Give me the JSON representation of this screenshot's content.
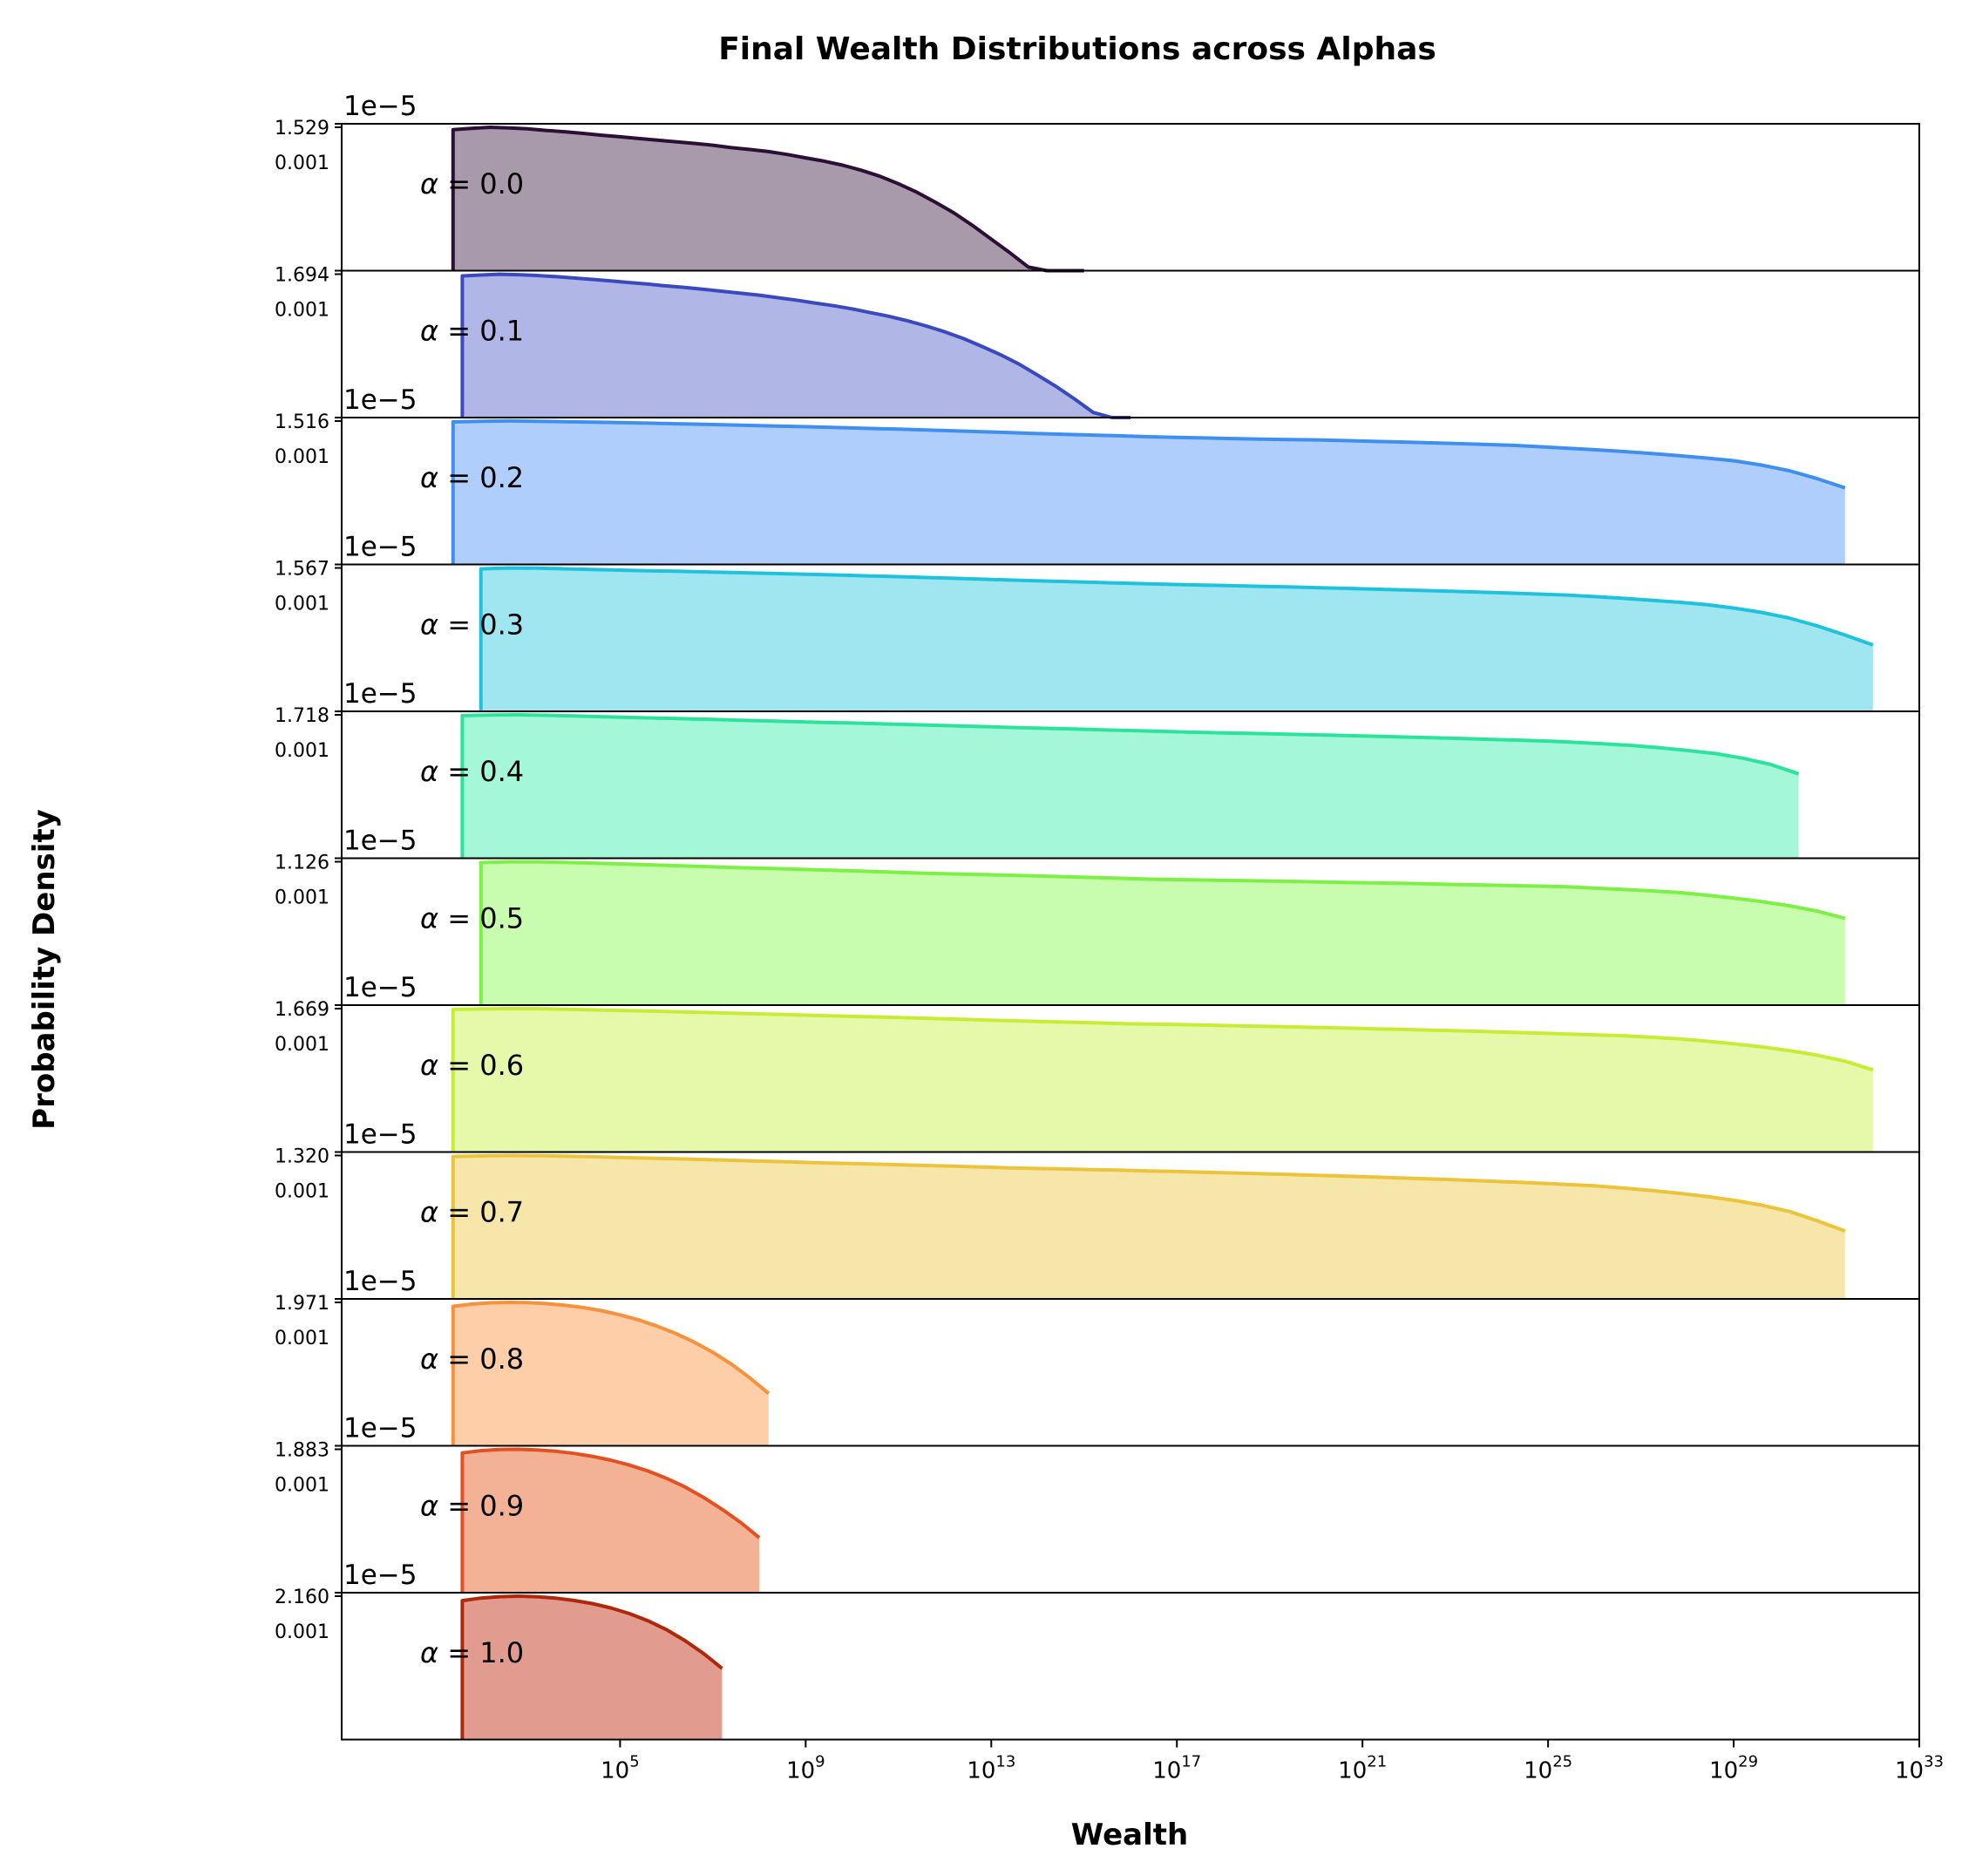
{
  "chart_data": {
    "type": "area",
    "title": "Final Wealth Distributions across Alphas",
    "xlabel": "Wealth",
    "ylabel": "Probability Density",
    "x_scale": "log",
    "xlim": [
      0.1,
      1e+33
    ],
    "xticks": [
      {
        "value": 100000.0,
        "base": "10",
        "exp": "5"
      },
      {
        "value": 1000000000.0,
        "base": "10",
        "exp": "9"
      },
      {
        "value": 10000000000000.0,
        "base": "10",
        "exp": "13"
      },
      {
        "value": 1e+17,
        "base": "10",
        "exp": "17"
      },
      {
        "value": 1e+21,
        "base": "10",
        "exp": "21"
      },
      {
        "value": 1e+25,
        "base": "10",
        "exp": "25"
      },
      {
        "value": 1e+29,
        "base": "10",
        "exp": "29"
      },
      {
        "value": 1e+33,
        "base": "10",
        "exp": "33"
      }
    ],
    "series": [
      {
        "name": "α = 0.0",
        "label_greek": "α",
        "label_rest": " = 0.0",
        "color": "#2b0f36",
        "fill": "#9a889c",
        "ytick_top": "1.529",
        "ytick_mid": "0.001",
        "ymid": 0.001,
        "ymax": 1.529e-05,
        "offset": "1e−5",
        "ymin": 1e-08,
        "x_log10": [
          1.4,
          1.8,
          2.2,
          2.6,
          3.0,
          3.4,
          3.8,
          4.2,
          4.6,
          5.0,
          5.4,
          5.8,
          6.2,
          6.6,
          7.0,
          7.4,
          7.8,
          8.2,
          8.6,
          9.0,
          9.4,
          9.8,
          10.2,
          10.6,
          11.0,
          11.4,
          11.8,
          12.2,
          12.6,
          13.0,
          13.4,
          13.8,
          14.2,
          14.6,
          15.0
        ],
        "y": [
          1.35e-05,
          1.45e-05,
          1.53e-05,
          1.48e-05,
          1.42e-05,
          1.3e-05,
          1.22e-05,
          1.12e-05,
          1.02e-05,
          9.4e-06,
          8.6e-06,
          7.9e-06,
          7.3e-06,
          6.7e-06,
          6.1e-06,
          5.4e-06,
          4.9e-06,
          4.4e-06,
          3.8e-06,
          3.2e-06,
          2.7e-06,
          2.2e-06,
          1.7e-06,
          1.25e-06,
          8.5e-07,
          5.5e-07,
          3.3e-07,
          1.9e-07,
          1e-07,
          5e-08,
          2.5e-08,
          1.2e-08,
          6e-09,
          3e-09,
          1.5e-09
        ]
      },
      {
        "name": "α = 0.1",
        "label_greek": "α",
        "label_rest": " = 0.1",
        "color": "#3a49c0",
        "fill": "#a2a9e0",
        "ytick_top": "1.694",
        "ytick_mid": "0.001",
        "ymid": 0.001,
        "ymax": 1.694e-05,
        "offset": "1e−5",
        "ymin": 1e-08,
        "x_log10": [
          1.6,
          2.0,
          2.4,
          2.8,
          3.2,
          3.6,
          4.0,
          4.4,
          4.8,
          5.2,
          5.6,
          6.0,
          6.4,
          6.8,
          7.2,
          7.6,
          8.0,
          8.4,
          8.8,
          9.2,
          9.6,
          10.0,
          10.4,
          10.8,
          11.2,
          11.6,
          12.0,
          12.4,
          12.8,
          13.2,
          13.6,
          14.0,
          14.4,
          14.8,
          15.2,
          15.6,
          16.0
        ],
        "y": [
          1.55e-05,
          1.62e-05,
          1.69e-05,
          1.65e-05,
          1.58e-05,
          1.49e-05,
          1.39e-05,
          1.29e-05,
          1.19e-05,
          1.1e-05,
          1.01e-05,
          9.2e-06,
          8.5e-06,
          7.7e-06,
          7e-06,
          6.3e-06,
          5.7e-06,
          5e-06,
          4.4e-06,
          3.8e-06,
          3.3e-06,
          2.8e-06,
          2.3e-06,
          1.9e-06,
          1.5e-06,
          1.15e-06,
          8.5e-07,
          6e-07,
          4e-07,
          2.6e-07,
          1.6e-07,
          9e-08,
          5e-08,
          2.6e-08,
          1.3e-08,
          6e-09,
          3e-09
        ]
      },
      {
        "name": "α = 0.2",
        "label_greek": "α",
        "label_rest": " = 0.2",
        "color": "#3f8ff0",
        "fill": "#a2c5fb",
        "ytick_top": "1.516",
        "ytick_mid": "0.001",
        "ymid": 0.001,
        "ymax": 1.516e-05,
        "offset": "1e−5",
        "ymin": 1e-08,
        "x_log10": [
          1.4,
          2.0,
          2.6,
          3.2,
          3.8,
          4.4,
          5.0,
          5.6,
          6.2,
          6.8,
          7.4,
          8.0,
          8.6,
          9.2,
          9.8,
          10.4,
          11.0,
          11.6,
          12.2,
          12.8,
          13.4,
          14.0,
          14.6,
          15.2,
          15.8,
          16.4,
          17.0,
          17.6,
          18.2,
          18.8,
          19.4,
          20.0,
          20.6,
          21.2,
          21.8,
          22.4,
          23.0,
          23.6,
          24.2,
          24.8,
          25.4,
          26.0,
          26.6,
          27.2,
          27.8,
          28.4,
          29.0,
          29.6,
          30.2,
          30.8,
          31.4
        ],
        "y": [
          1.45e-05,
          1.5e-05,
          1.52e-05,
          1.5e-05,
          1.47e-05,
          1.44e-05,
          1.4e-05,
          1.36e-05,
          1.32e-05,
          1.28e-05,
          1.24e-05,
          1.2e-05,
          1.16e-05,
          1.12e-05,
          1.08e-05,
          1.04e-05,
          1e-05,
          9.6e-06,
          9.2e-06,
          8.8e-06,
          8.4e-06,
          8e-06,
          7.7e-06,
          7.4e-06,
          7.1e-06,
          6.8e-06,
          6.6e-06,
          6.4e-06,
          6.2e-06,
          6e-06,
          5.9e-06,
          5.8e-06,
          5.6e-06,
          5.4e-06,
          5.2e-06,
          5e-06,
          4.8e-06,
          4.6e-06,
          4.4e-06,
          4.1e-06,
          3.8e-06,
          3.5e-06,
          3.2e-06,
          2.9e-06,
          2.6e-06,
          2.3e-06,
          2e-06,
          1.6e-06,
          1.2e-06,
          8e-07,
          5e-07
        ]
      },
      {
        "name": "α = 0.3",
        "label_greek": "α",
        "label_rest": " = 0.3",
        "color": "#1fc2dd",
        "fill": "#8fe2ef",
        "ytick_top": "1.567",
        "ytick_mid": "0.001",
        "ymid": 0.001,
        "ymax": 1.567e-05,
        "offset": "1e−5",
        "ymin": 1e-08,
        "x_log10": [
          2.0,
          2.6,
          3.2,
          3.8,
          4.4,
          5.0,
          5.6,
          6.2,
          6.8,
          7.4,
          8.0,
          8.6,
          9.2,
          9.8,
          10.4,
          11.0,
          11.6,
          12.2,
          12.8,
          13.4,
          14.0,
          14.6,
          15.2,
          15.8,
          16.4,
          17.0,
          17.6,
          18.2,
          18.8,
          19.4,
          20.0,
          20.6,
          21.2,
          21.8,
          22.4,
          23.0,
          23.6,
          24.2,
          24.8,
          25.4,
          26.0,
          26.6,
          27.2,
          27.8,
          28.4,
          29.0,
          29.6,
          30.2,
          30.8,
          31.4,
          32.0
        ],
        "y": [
          1.5e-05,
          1.56e-05,
          1.55e-05,
          1.5e-05,
          1.45e-05,
          1.4e-05,
          1.36e-05,
          1.32e-05,
          1.28e-05,
          1.24e-05,
          1.2e-05,
          1.16e-05,
          1.12e-05,
          1.08e-05,
          1.04e-05,
          1e-05,
          9.6e-06,
          9.2e-06,
          8.8e-06,
          8.4e-06,
          8.1e-06,
          7.8e-06,
          7.5e-06,
          7.2e-06,
          6.9e-06,
          6.7e-06,
          6.5e-06,
          6.3e-06,
          6.1e-06,
          5.9e-06,
          5.7e-06,
          5.5e-06,
          5.3e-06,
          5.1e-06,
          4.9e-06,
          4.7e-06,
          4.5e-06,
          4.3e-06,
          4.1e-06,
          3.9e-06,
          3.6e-06,
          3.3e-06,
          3e-06,
          2.7e-06,
          2.4e-06,
          2e-06,
          1.6e-06,
          1.2e-06,
          8e-07,
          5e-07,
          3e-07
        ]
      },
      {
        "name": "α = 0.4",
        "label_greek": "α",
        "label_rest": " = 0.4",
        "color": "#2be39b",
        "fill": "#95f6d2",
        "ytick_top": "1.718",
        "ytick_mid": "0.001",
        "ymid": 0.001,
        "ymax": 1.718e-05,
        "offset": "1e−5",
        "ymin": 1e-08,
        "x_log10": [
          1.6,
          2.2,
          2.8,
          3.4,
          4.0,
          4.6,
          5.2,
          5.8,
          6.4,
          7.0,
          7.6,
          8.2,
          8.8,
          9.4,
          10.0,
          10.6,
          11.2,
          11.8,
          12.4,
          13.0,
          13.6,
          14.2,
          14.8,
          15.4,
          16.0,
          16.6,
          17.2,
          17.8,
          18.4,
          19.0,
          19.6,
          20.2,
          20.8,
          21.4,
          22.0,
          22.6,
          23.2,
          23.8,
          24.4,
          25.0,
          25.6,
          26.2,
          26.8,
          27.4,
          28.0,
          28.6,
          29.2,
          29.8,
          30.4
        ],
        "y": [
          1.65e-05,
          1.7e-05,
          1.72e-05,
          1.68e-05,
          1.62e-05,
          1.56e-05,
          1.5e-05,
          1.45e-05,
          1.4e-05,
          1.35e-05,
          1.3e-05,
          1.25e-05,
          1.2e-05,
          1.16e-05,
          1.12e-05,
          1.08e-05,
          1.04e-05,
          1e-05,
          9.6e-06,
          9.2e-06,
          8.8e-06,
          8.5e-06,
          8.2e-06,
          7.9e-06,
          7.6e-06,
          7.3e-06,
          7e-06,
          6.8e-06,
          6.6e-06,
          6.4e-06,
          6.2e-06,
          6e-06,
          5.8e-06,
          5.6e-06,
          5.4e-06,
          5.2e-06,
          5e-06,
          4.8e-06,
          4.6e-06,
          4.4e-06,
          4.1e-06,
          3.8e-06,
          3.5e-06,
          3.1e-06,
          2.7e-06,
          2.3e-06,
          1.8e-06,
          1.3e-06,
          8e-07
        ]
      },
      {
        "name": "α = 0.5",
        "label_greek": "α",
        "label_rest": " = 0.5",
        "color": "#7cf045",
        "fill": "#befba0",
        "ytick_top": "1.126",
        "ytick_mid": "0.001",
        "ymid": 0.001,
        "ymax": 1.126e-05,
        "offset": "1e−5",
        "ymin": 1e-08,
        "x_log10": [
          2.0,
          2.6,
          3.2,
          3.8,
          4.4,
          5.0,
          5.6,
          6.2,
          6.8,
          7.4,
          8.0,
          8.6,
          9.2,
          9.8,
          10.4,
          11.0,
          11.6,
          12.2,
          12.8,
          13.4,
          14.0,
          14.6,
          15.2,
          15.8,
          16.4,
          17.0,
          17.6,
          18.2,
          18.8,
          19.4,
          20.0,
          20.6,
          21.2,
          21.8,
          22.4,
          23.0,
          23.6,
          24.2,
          24.8,
          25.4,
          26.0,
          26.6,
          27.2,
          27.8,
          28.4,
          29.0,
          29.6,
          30.2,
          30.8,
          31.4
        ],
        "y": [
          1.08e-05,
          1.12e-05,
          1.12e-05,
          1.09e-05,
          1.05e-05,
          1.01e-05,
          9.7e-06,
          9.3e-06,
          8.9e-06,
          8.5e-06,
          8.2e-06,
          7.9e-06,
          7.6e-06,
          7.3e-06,
          7e-06,
          6.7e-06,
          6.4e-06,
          6.2e-06,
          6e-06,
          5.8e-06,
          5.6e-06,
          5.4e-06,
          5.2e-06,
          5e-06,
          4.8e-06,
          4.7e-06,
          4.6e-06,
          4.5e-06,
          4.4e-06,
          4.3e-06,
          4.2e-06,
          4.1e-06,
          4e-06,
          3.9e-06,
          3.8e-06,
          3.7e-06,
          3.6e-06,
          3.5e-06,
          3.4e-06,
          3.3e-06,
          3.1e-06,
          2.9e-06,
          2.7e-06,
          2.5e-06,
          2.2e-06,
          1.9e-06,
          1.6e-06,
          1.3e-06,
          1e-06,
          7e-07
        ]
      },
      {
        "name": "α = 0.6",
        "label_greek": "α",
        "label_rest": " = 0.6",
        "color": "#c6ed34",
        "fill": "#e2f89c",
        "ytick_top": "1.669",
        "ytick_mid": "0.001",
        "ymid": 0.001,
        "ymax": 1.669e-05,
        "offset": "1e−5",
        "ymin": 1e-08,
        "x_log10": [
          1.4,
          2.0,
          2.6,
          3.2,
          3.8,
          4.4,
          5.0,
          5.6,
          6.2,
          6.8,
          7.4,
          8.0,
          8.6,
          9.2,
          9.8,
          10.4,
          11.0,
          11.6,
          12.2,
          12.8,
          13.4,
          14.0,
          14.6,
          15.2,
          15.8,
          16.4,
          17.0,
          17.6,
          18.2,
          18.8,
          19.4,
          20.0,
          20.6,
          21.2,
          21.8,
          22.4,
          23.0,
          23.6,
          24.2,
          24.8,
          25.4,
          26.0,
          26.6,
          27.2,
          27.8,
          28.4,
          29.0,
          29.6,
          30.2,
          30.8,
          31.4,
          32.0
        ],
        "y": [
          1.6e-05,
          1.64e-05,
          1.67e-05,
          1.66e-05,
          1.62e-05,
          1.57e-05,
          1.52e-05,
          1.47e-05,
          1.42e-05,
          1.37e-05,
          1.32e-05,
          1.27e-05,
          1.22e-05,
          1.17e-05,
          1.13e-05,
          1.09e-05,
          1.05e-05,
          1.01e-05,
          9.7e-06,
          9.3e-06,
          8.9e-06,
          8.6e-06,
          8.3e-06,
          8e-06,
          7.7e-06,
          7.5e-06,
          7.3e-06,
          7.1e-06,
          6.9e-06,
          6.7e-06,
          6.5e-06,
          6.3e-06,
          6.1e-06,
          5.9e-06,
          5.7e-06,
          5.5e-06,
          5.3e-06,
          5.1e-06,
          4.9e-06,
          4.7e-06,
          4.5e-06,
          4.3e-06,
          4.1e-06,
          3.8e-06,
          3.5e-06,
          3.1e-06,
          2.7e-06,
          2.3e-06,
          1.9e-06,
          1.5e-06,
          1.1e-06,
          7e-07
        ]
      },
      {
        "name": "α = 0.7",
        "label_greek": "α",
        "label_rest": " = 0.7",
        "color": "#ecc33b",
        "fill": "#f4e29b",
        "ytick_top": "1.320",
        "ytick_mid": "0.001",
        "ymid": 0.001,
        "ymax": 1.32e-05,
        "offset": "1e−5",
        "ymin": 1e-08,
        "x_log10": [
          1.4,
          2.0,
          2.6,
          3.2,
          3.8,
          4.4,
          5.0,
          5.6,
          6.2,
          6.8,
          7.4,
          8.0,
          8.6,
          9.2,
          9.8,
          10.4,
          11.0,
          11.6,
          12.2,
          12.8,
          13.4,
          14.0,
          14.6,
          15.2,
          15.8,
          16.4,
          17.0,
          17.6,
          18.2,
          18.8,
          19.4,
          20.0,
          20.6,
          21.2,
          21.8,
          22.4,
          23.0,
          23.6,
          24.2,
          24.8,
          25.4,
          26.0,
          26.6,
          27.2,
          27.8,
          28.4,
          29.0,
          29.6,
          30.2,
          30.8,
          31.4
        ],
        "y": [
          1.26e-05,
          1.29e-05,
          1.32e-05,
          1.31e-05,
          1.28e-05,
          1.24e-05,
          1.2e-05,
          1.16e-05,
          1.12e-05,
          1.08e-05,
          1.04e-05,
          1e-05,
          9.6e-06,
          9.2e-06,
          8.9e-06,
          8.6e-06,
          8.3e-06,
          8e-06,
          7.7e-06,
          7.4e-06,
          7.1e-06,
          6.9e-06,
          6.7e-06,
          6.5e-06,
          6.3e-06,
          6.1e-06,
          5.9e-06,
          5.7e-06,
          5.5e-06,
          5.3e-06,
          5.1e-06,
          4.9e-06,
          4.7e-06,
          4.5e-06,
          4.3e-06,
          4.1e-06,
          3.9e-06,
          3.7e-06,
          3.5e-06,
          3.3e-06,
          3.1e-06,
          2.9e-06,
          2.6e-06,
          2.3e-06,
          2e-06,
          1.7e-06,
          1.4e-06,
          1.1e-06,
          8e-07,
          5e-07,
          3e-07
        ]
      },
      {
        "name": "α = 0.8",
        "label_greek": "α",
        "label_rest": " = 0.8",
        "color": "#f7913b",
        "fill": "#fdc699",
        "ytick_top": "1.971",
        "ytick_mid": "0.001",
        "ymid": 0.001,
        "ymax": 1.971e-05,
        "offset": "1e−5",
        "ymin": 1e-08,
        "x_log10": [
          1.4,
          1.8,
          2.2,
          2.6,
          3.0,
          3.4,
          3.8,
          4.2,
          4.6,
          5.0,
          5.4,
          5.8,
          6.2,
          6.6,
          7.0,
          7.4,
          7.8,
          8.2
        ],
        "y": [
          1.6e-05,
          1.8e-05,
          1.93e-05,
          1.97e-05,
          1.94e-05,
          1.85e-05,
          1.7e-05,
          1.5e-05,
          1.27e-05,
          1.02e-05,
          7.8e-06,
          5.6e-06,
          3.8e-06,
          2.4e-06,
          1.4e-06,
          7.5e-07,
          3.6e-07,
          1.6e-07
        ]
      },
      {
        "name": "α = 0.9",
        "label_greek": "α",
        "label_rest": " = 0.9",
        "color": "#e4501f",
        "fill": "#f1a584",
        "ytick_top": "1.883",
        "ytick_mid": "0.001",
        "ymid": 0.001,
        "ymax": 1.883e-05,
        "offset": "1e−5",
        "ymin": 1e-08,
        "x_log10": [
          1.6,
          2.0,
          2.4,
          2.8,
          3.2,
          3.6,
          4.0,
          4.4,
          4.8,
          5.2,
          5.6,
          6.0,
          6.4,
          6.8,
          7.2,
          7.6,
          8.0
        ],
        "y": [
          1.55e-05,
          1.75e-05,
          1.86e-05,
          1.88e-05,
          1.82e-05,
          1.7e-05,
          1.52e-05,
          1.3e-05,
          1.06e-05,
          8.2e-06,
          6e-06,
          4.1e-06,
          2.6e-06,
          1.5e-06,
          8e-07,
          4e-07,
          1.8e-07
        ]
      },
      {
        "name": "α = 1.0",
        "label_greek": "α",
        "label_rest": " = 1.0",
        "color": "#b0280b",
        "fill": "#dd8b7b",
        "ytick_top": "2.160",
        "ytick_mid": "0.001",
        "ymid": 0.001,
        "ymax": 2.16e-05,
        "offset": "",
        "ymin": 1e-08,
        "x_log10": [
          1.6,
          2.0,
          2.4,
          2.8,
          3.2,
          3.6,
          4.0,
          4.4,
          4.8,
          5.2,
          5.6,
          6.0,
          6.4,
          6.8,
          7.2
        ],
        "y": [
          1.7e-05,
          1.95e-05,
          2.1e-05,
          2.16e-05,
          2.1e-05,
          1.95e-05,
          1.72e-05,
          1.45e-05,
          1.15e-05,
          8.5e-06,
          5.8e-06,
          3.6e-06,
          2e-06,
          1e-06,
          4.5e-07
        ]
      }
    ]
  }
}
